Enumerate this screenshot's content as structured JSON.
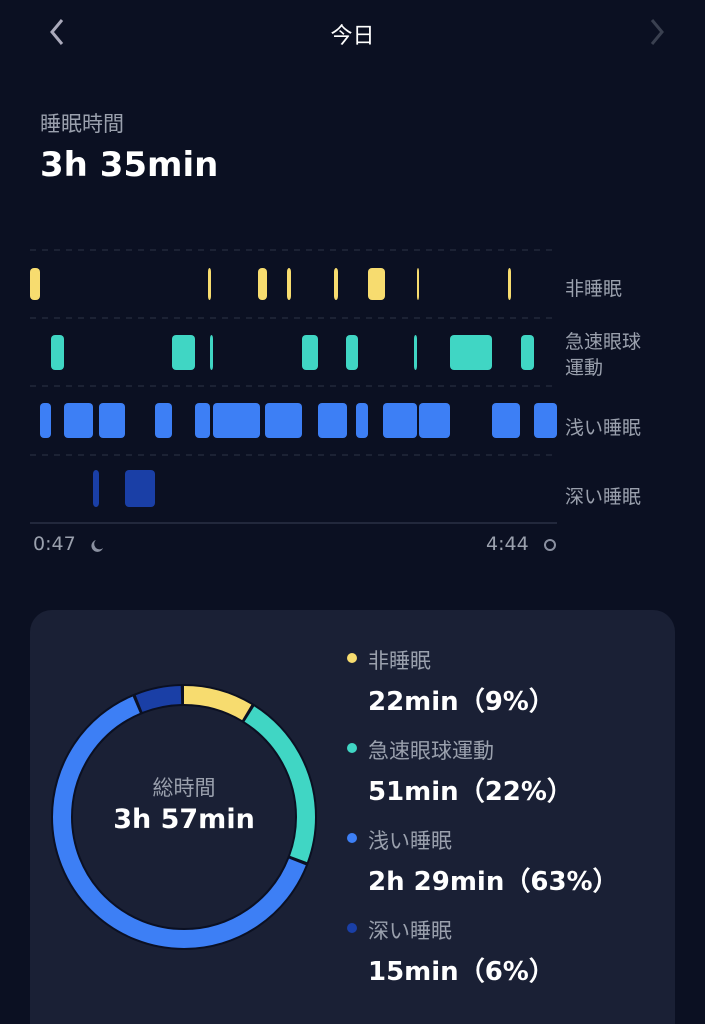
{
  "header": {
    "title": "今日"
  },
  "summary": {
    "label": "睡眠時間",
    "value": "3h 35min"
  },
  "hypnogram": {
    "stages": [
      "非睡眠",
      "急速眼球運動",
      "浅い睡眠",
      "深い睡眠"
    ],
    "start": "0:47",
    "end": "4:44"
  },
  "breakdown": {
    "center_label": "総時間",
    "center_value": "3h 57min",
    "segments": [
      {
        "name": "非睡眠",
        "label": "22min（9%）",
        "percent": 9,
        "color": "#f7dc6f"
      },
      {
        "name": "急速眼球運動",
        "label": "51min（22%）",
        "percent": 22,
        "color": "#40d6c4"
      },
      {
        "name": "浅い睡眠",
        "label": "2h 29min（63%）",
        "percent": 63,
        "color": "#3d7ff5"
      },
      {
        "name": "深い睡眠",
        "label": "15min（6%）",
        "percent": 6,
        "color": "#1a3fa6"
      }
    ]
  }
}
